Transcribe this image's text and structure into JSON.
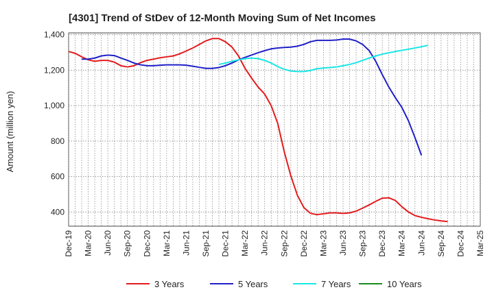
{
  "chart_data": {
    "type": "line",
    "title": "[4301]  Trend of StDev of 12-Month Moving Sum of Net Incomes",
    "xlabel": "",
    "ylabel": "Amount (million yen)",
    "ylim": [
      320,
      1410
    ],
    "yticks": [
      400,
      600,
      800,
      1000,
      1200,
      1400
    ],
    "ytick_labels": [
      "400",
      "600",
      "800",
      "1,000",
      "1,200",
      "1,400"
    ],
    "xticks": [
      "Dec-19",
      "Mar-20",
      "Jun-20",
      "Sep-20",
      "Dec-20",
      "Mar-21",
      "Jun-21",
      "Sep-21",
      "Dec-21",
      "Mar-22",
      "Jun-22",
      "Sep-22",
      "Dec-22",
      "Mar-23",
      "Jun-23",
      "Sep-23",
      "Dec-23",
      "Mar-24",
      "Jun-24",
      "Sep-24",
      "Dec-24",
      "Mar-25"
    ],
    "grid": true,
    "legend_position": "bottom",
    "series": [
      {
        "name": "3 Years",
        "color": "#e41a1c",
        "start": "Dec-19",
        "values": [
          1305,
          1295,
          1275,
          1258,
          1250,
          1255,
          1255,
          1245,
          1225,
          1218,
          1225,
          1242,
          1255,
          1262,
          1270,
          1275,
          1280,
          1292,
          1308,
          1325,
          1345,
          1365,
          1378,
          1378,
          1360,
          1330,
          1280,
          1210,
          1155,
          1105,
          1065,
          1000,
          900,
          740,
          605,
          495,
          425,
          393,
          385,
          390,
          395,
          395,
          392,
          395,
          405,
          422,
          440,
          460,
          478,
          480,
          465,
          430,
          400,
          380,
          370,
          362,
          355,
          350,
          346
        ]
      },
      {
        "name": "5 Years",
        "color": "#1f1fc8",
        "start": "Dec-19",
        "values": [
          null,
          null,
          1262,
          1262,
          1268,
          1280,
          1285,
          1282,
          1268,
          1255,
          1240,
          1230,
          1225,
          1225,
          1228,
          1230,
          1230,
          1230,
          1228,
          1222,
          1216,
          1210,
          1210,
          1215,
          1225,
          1240,
          1258,
          1272,
          1285,
          1298,
          1310,
          1320,
          1325,
          1328,
          1330,
          1335,
          1345,
          1360,
          1368,
          1368,
          1368,
          1370,
          1375,
          1375,
          1365,
          1345,
          1310,
          1250,
          1175,
          1105,
          1045,
          990,
          915,
          820,
          720
        ]
      },
      {
        "name": "7 Years",
        "color": "#19e6e6",
        "start": "Dec-19",
        "values": [
          null,
          null,
          null,
          null,
          null,
          null,
          null,
          null,
          null,
          null,
          null,
          null,
          null,
          null,
          null,
          null,
          null,
          null,
          null,
          null,
          null,
          null,
          null,
          1232,
          1240,
          1250,
          1258,
          1265,
          1268,
          1265,
          1255,
          1240,
          1220,
          1205,
          1195,
          1192,
          1192,
          1198,
          1208,
          1212,
          1215,
          1218,
          1225,
          1232,
          1242,
          1255,
          1268,
          1280,
          1290,
          1298,
          1305,
          1312,
          1318,
          1325,
          1332,
          1340
        ]
      },
      {
        "name": "10 Years",
        "color": "#1a8a1a",
        "start": "Dec-19",
        "values": []
      }
    ]
  }
}
